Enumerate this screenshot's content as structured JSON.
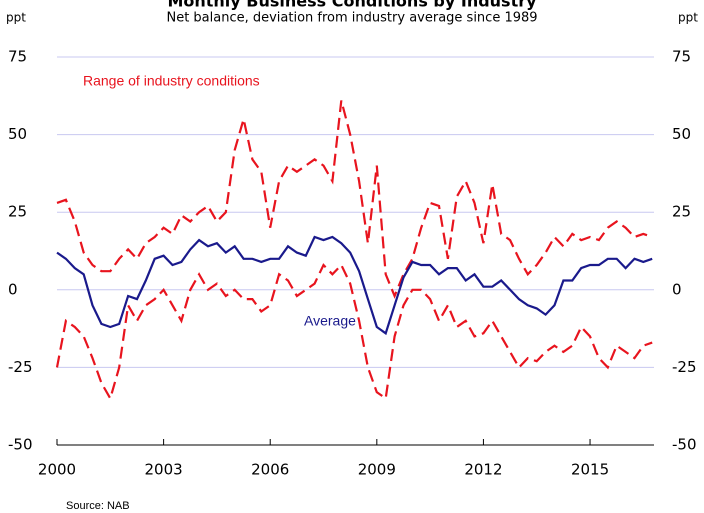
{
  "chart_data": {
    "type": "line",
    "title": "Monthly Business Conditions by Industry",
    "subtitle": "Net balance, deviation from industry average since 1989",
    "y_label": "ppt",
    "y2_label": "ppt",
    "source": "Source: NAB",
    "annotations": [
      {
        "text": "Range of industry conditions",
        "color": "#e8141e"
      },
      {
        "text": "Average",
        "color": "#1a1a8c"
      }
    ],
    "x": [
      2000,
      2000.25,
      2000.5,
      2000.75,
      2001,
      2001.25,
      2001.5,
      2001.75,
      2002,
      2002.25,
      2002.5,
      2002.75,
      2003,
      2003.25,
      2003.5,
      2003.75,
      2004,
      2004.25,
      2004.5,
      2004.75,
      2005,
      2005.25,
      2005.5,
      2005.75,
      2006,
      2006.25,
      2006.5,
      2006.75,
      2007,
      2007.25,
      2007.5,
      2007.75,
      2008,
      2008.25,
      2008.5,
      2008.75,
      2009,
      2009.25,
      2009.5,
      2009.75,
      2010,
      2010.25,
      2010.5,
      2010.75,
      2011,
      2011.25,
      2011.5,
      2011.75,
      2012,
      2012.25,
      2012.5,
      2012.75,
      2013,
      2013.25,
      2013.5,
      2013.75,
      2014,
      2014.25,
      2014.5,
      2014.75,
      2015,
      2015.25,
      2015.5,
      2015.75,
      2016,
      2016.25,
      2016.5,
      2016.75
    ],
    "series": [
      {
        "name": "Upper range",
        "color": "#e8141e",
        "dash": true,
        "values": [
          28,
          29,
          22,
          12,
          8,
          6,
          6,
          10,
          13,
          10,
          15,
          17,
          20,
          18,
          24,
          22,
          25,
          27,
          22,
          25,
          45,
          55,
          42,
          38,
          20,
          35,
          40,
          38,
          40,
          42,
          40,
          35,
          61,
          50,
          35,
          15,
          40,
          5,
          -2,
          5,
          10,
          20,
          28,
          27,
          10,
          30,
          35,
          28,
          15,
          34,
          18,
          16,
          10,
          5,
          8,
          12,
          17,
          14,
          18,
          16,
          17,
          16,
          20,
          22,
          20,
          17,
          18,
          17
        ]
      },
      {
        "name": "Lower range",
        "color": "#e8141e",
        "dash": true,
        "values": [
          -25,
          -10,
          -12,
          -15,
          -22,
          -30,
          -35,
          -25,
          -5,
          -10,
          -5,
          -3,
          0,
          -5,
          -10,
          0,
          5,
          0,
          2,
          -2,
          0,
          -3,
          -3,
          -7,
          -5,
          5,
          3,
          -2,
          0,
          2,
          8,
          5,
          8,
          2,
          -10,
          -25,
          -33,
          -35,
          -15,
          -5,
          0,
          0,
          -3,
          -10,
          -5,
          -12,
          -10,
          -15,
          -14,
          -10,
          -15,
          -20,
          -25,
          -22,
          -23,
          -20,
          -18,
          -20,
          -18,
          -12,
          -15,
          -22,
          -25,
          -18,
          -20,
          -22,
          -18,
          -17
        ]
      },
      {
        "name": "Average",
        "color": "#1a1a8c",
        "dash": false,
        "values": [
          12,
          10,
          7,
          5,
          -5,
          -11,
          -12,
          -11,
          -2,
          -3,
          3,
          10,
          11,
          8,
          9,
          13,
          16,
          14,
          15,
          12,
          14,
          10,
          10,
          9,
          10,
          10,
          14,
          12,
          11,
          17,
          16,
          17,
          15,
          12,
          6,
          -3,
          -12,
          -14,
          -5,
          4,
          9,
          8,
          8,
          5,
          7,
          7,
          3,
          5,
          1,
          1,
          3,
          0,
          -3,
          -5,
          -6,
          -8,
          -5,
          3,
          3,
          7,
          8,
          8,
          10,
          10,
          7,
          10,
          9,
          10
        ]
      }
    ],
    "xlim": [
      2000,
      2016.8
    ],
    "xticks": [
      2000,
      2003,
      2006,
      2009,
      2012,
      2015
    ],
    "ylim": [
      -50,
      75
    ],
    "yticks": [
      -50,
      -25,
      0,
      25,
      50,
      75
    ],
    "y2lim": [
      -50,
      75
    ],
    "y2ticks": [
      -50,
      -25,
      0,
      25,
      50,
      75
    ],
    "grid": true,
    "grid_color": "#c8c8f0"
  }
}
